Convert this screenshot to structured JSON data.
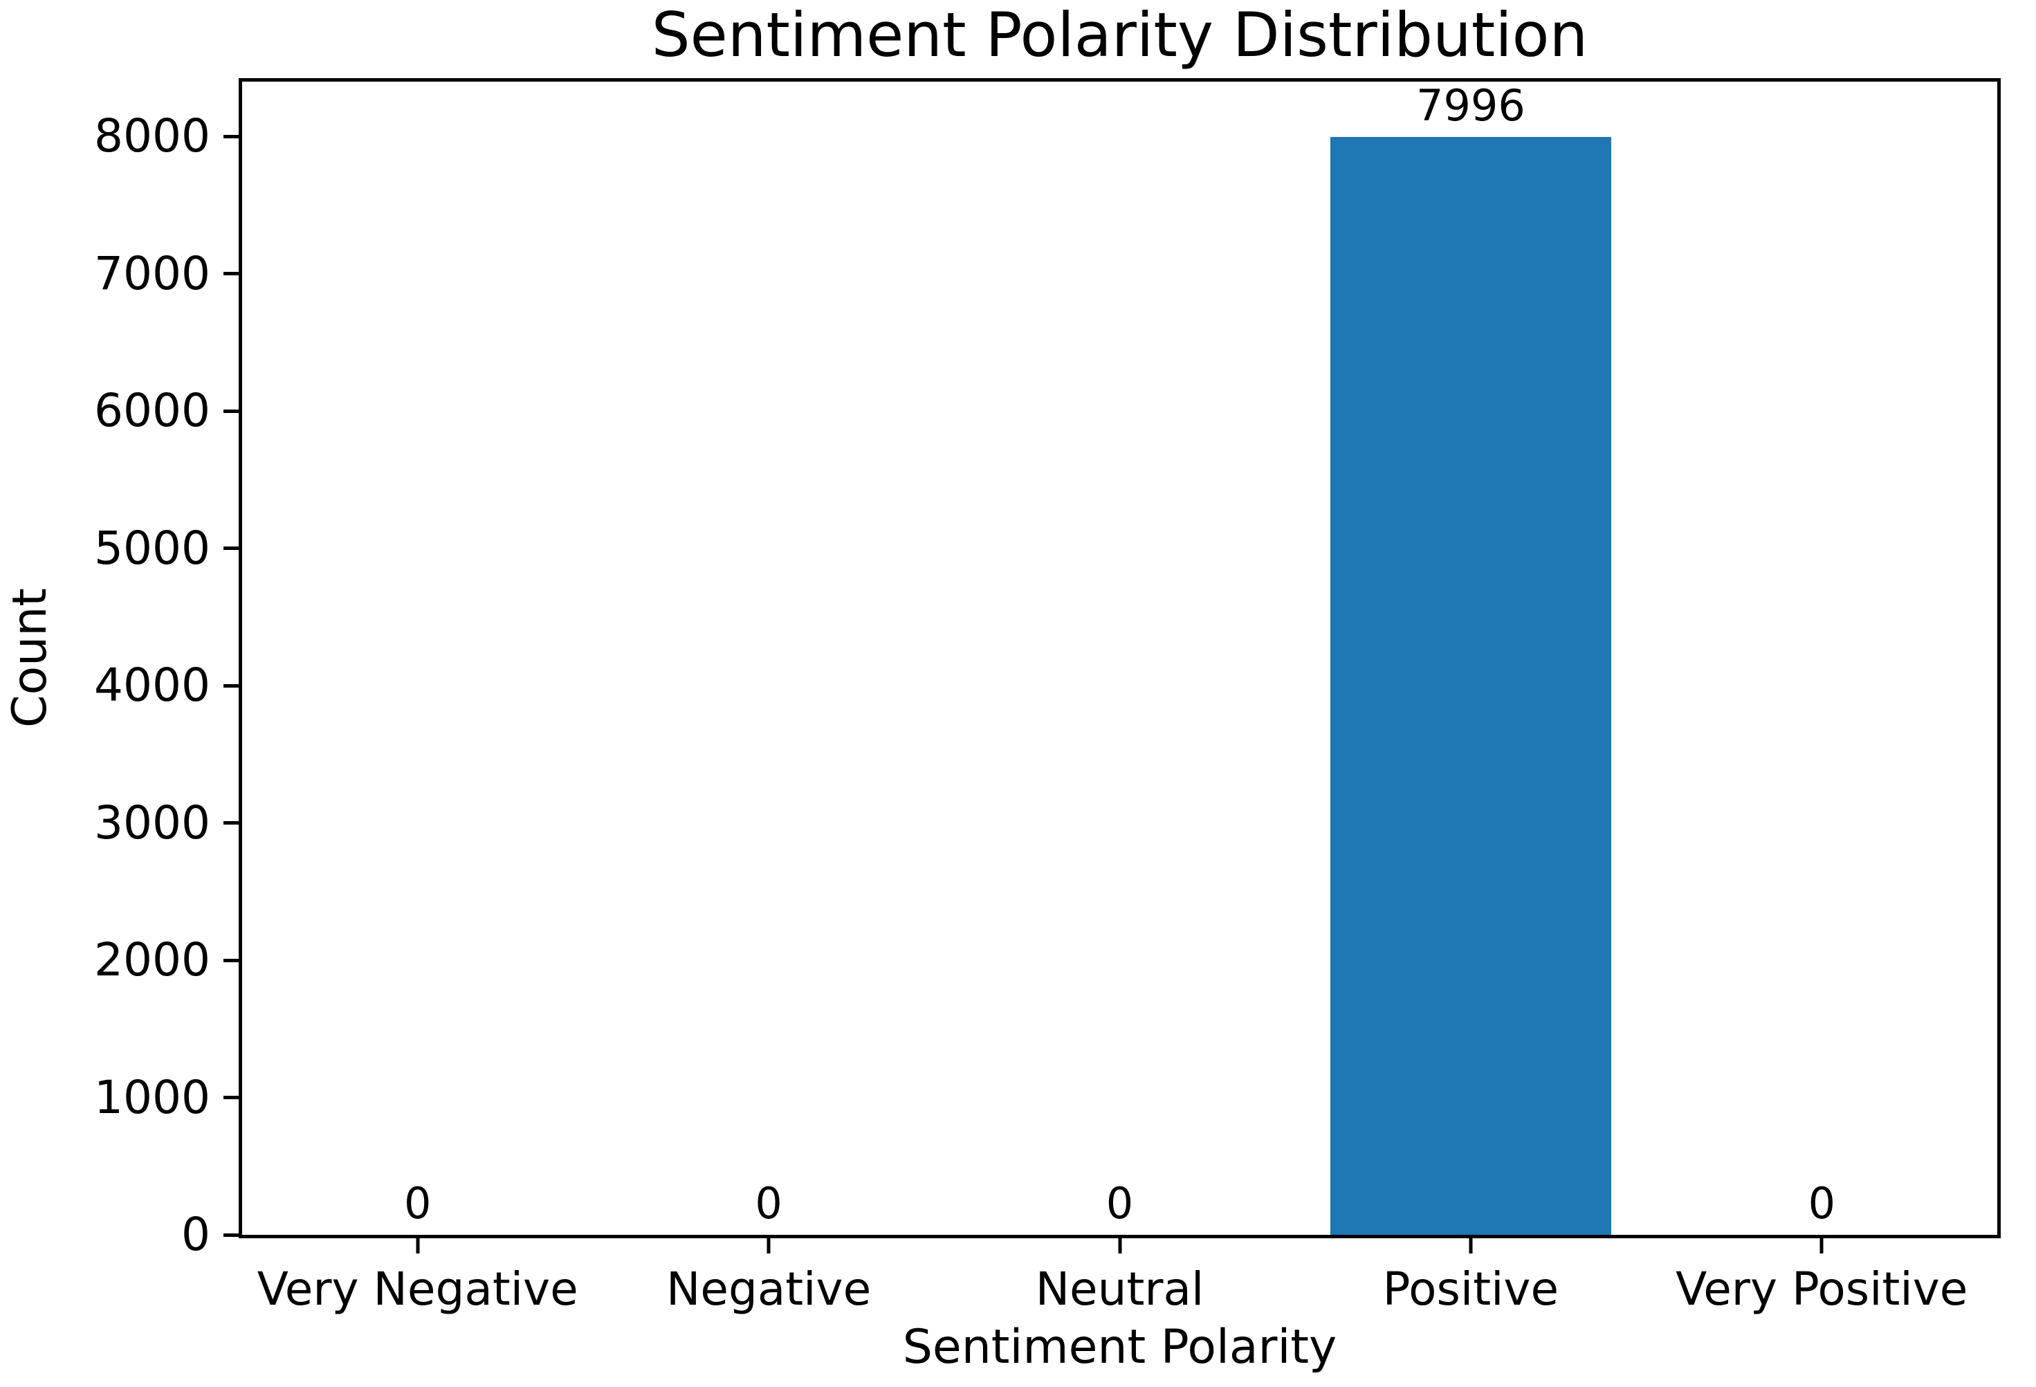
{
  "chart_data": {
    "type": "bar",
    "title": "Sentiment Polarity Distribution",
    "xlabel": "Sentiment Polarity",
    "ylabel": "Count",
    "categories": [
      "Very Negative",
      "Negative",
      "Neutral",
      "Positive",
      "Very Positive"
    ],
    "values": [
      0,
      0,
      0,
      7996,
      0
    ],
    "bar_labels": [
      "0",
      "0",
      "0",
      "7996",
      "0"
    ],
    "yticks": [
      0,
      1000,
      2000,
      3000,
      4000,
      5000,
      6000,
      7000,
      8000
    ],
    "ylim": [
      0,
      8400
    ],
    "bar_color": "#1f77b4",
    "axis_color": "#000000",
    "background_color": "#ffffff",
    "grid": false,
    "legend": "none",
    "bar_width_fraction": 0.8
  }
}
